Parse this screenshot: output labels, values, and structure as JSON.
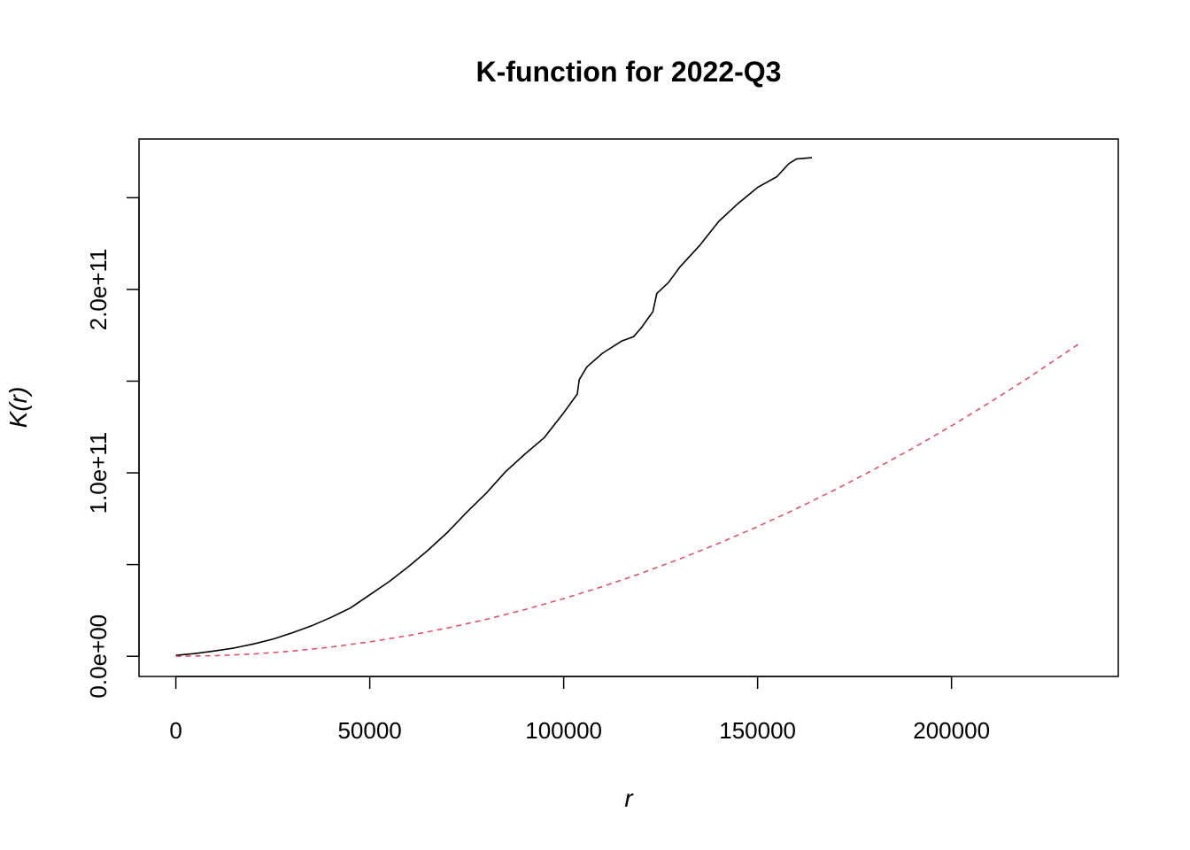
{
  "chart_data": {
    "type": "line",
    "title": "K-function for 2022-Q3",
    "xlabel": "r",
    "ylabel": "K(r)",
    "xlim": [
      -9500,
      243000
    ],
    "ylim": [
      -11000000000,
      282000000000
    ],
    "x_ticks": [
      {
        "value": 0,
        "label": "0"
      },
      {
        "value": 50000,
        "label": "50000"
      },
      {
        "value": 100000,
        "label": "100000"
      },
      {
        "value": 150000,
        "label": "150000"
      },
      {
        "value": 200000,
        "label": "200000"
      }
    ],
    "y_ticks": [
      {
        "value": 0,
        "label": "0.0e+00"
      },
      {
        "value": 50000000000,
        "label": ""
      },
      {
        "value": 100000000000,
        "label": "1.0e+11"
      },
      {
        "value": 150000000000,
        "label": ""
      },
      {
        "value": 200000000000,
        "label": "2.0e+11"
      },
      {
        "value": 250000000000,
        "label": ""
      }
    ],
    "grid": false,
    "series": [
      {
        "color": "#000000",
        "style": "solid",
        "x": [
          0,
          5000,
          10000,
          15000,
          20000,
          25000,
          30000,
          35000,
          40000,
          45000,
          50000,
          55000,
          60000,
          65000,
          70000,
          75000,
          80000,
          85000,
          90000,
          95000,
          100000,
          103500,
          104000,
          106000,
          110000,
          115000,
          118000,
          120000,
          123000,
          124000,
          127000,
          130000,
          135000,
          140000,
          145000,
          150000,
          155000,
          158000,
          160000,
          164000
        ],
        "y": [
          500000000,
          1500000000,
          2900000000,
          4500000000,
          6700000000,
          9300000000,
          12800000000,
          16600000000,
          21200000000,
          26300000000,
          33500000000,
          40700000000,
          48900000000,
          57800000000,
          67500000000,
          78500000000,
          88800000000,
          100600000000,
          110200000000,
          119200000000,
          132700000000,
          143000000000,
          150800000000,
          157800000000,
          165200000000,
          171900000000,
          174200000000,
          179000000000,
          187900000000,
          197800000000,
          203700000000,
          212300000000,
          223800000000,
          237100000000,
          246900000000,
          255600000000,
          261500000000,
          268500000000,
          271100000000,
          271800000000
        ]
      },
      {
        "color": "#DF536B",
        "style": "dashed",
        "x": [
          0,
          10000,
          20000,
          30000,
          40000,
          50000,
          60000,
          70000,
          80000,
          90000,
          100000,
          110000,
          120000,
          130000,
          140000,
          150000,
          160000,
          170000,
          180000,
          190000,
          200000,
          210000,
          220000,
          233000
        ],
        "y": [
          0,
          314000000,
          1257000000,
          2827000000,
          5027000000,
          7854000000,
          11310000000,
          15394000000,
          20106000000,
          25447000000,
          31416000000,
          38013000000,
          45239000000,
          53093000000,
          61575000000,
          70686000000,
          80425000000,
          90792000000,
          101788000000,
          113411000000,
          125664000000,
          138544000000,
          152053000000,
          170554000000
        ]
      }
    ]
  }
}
